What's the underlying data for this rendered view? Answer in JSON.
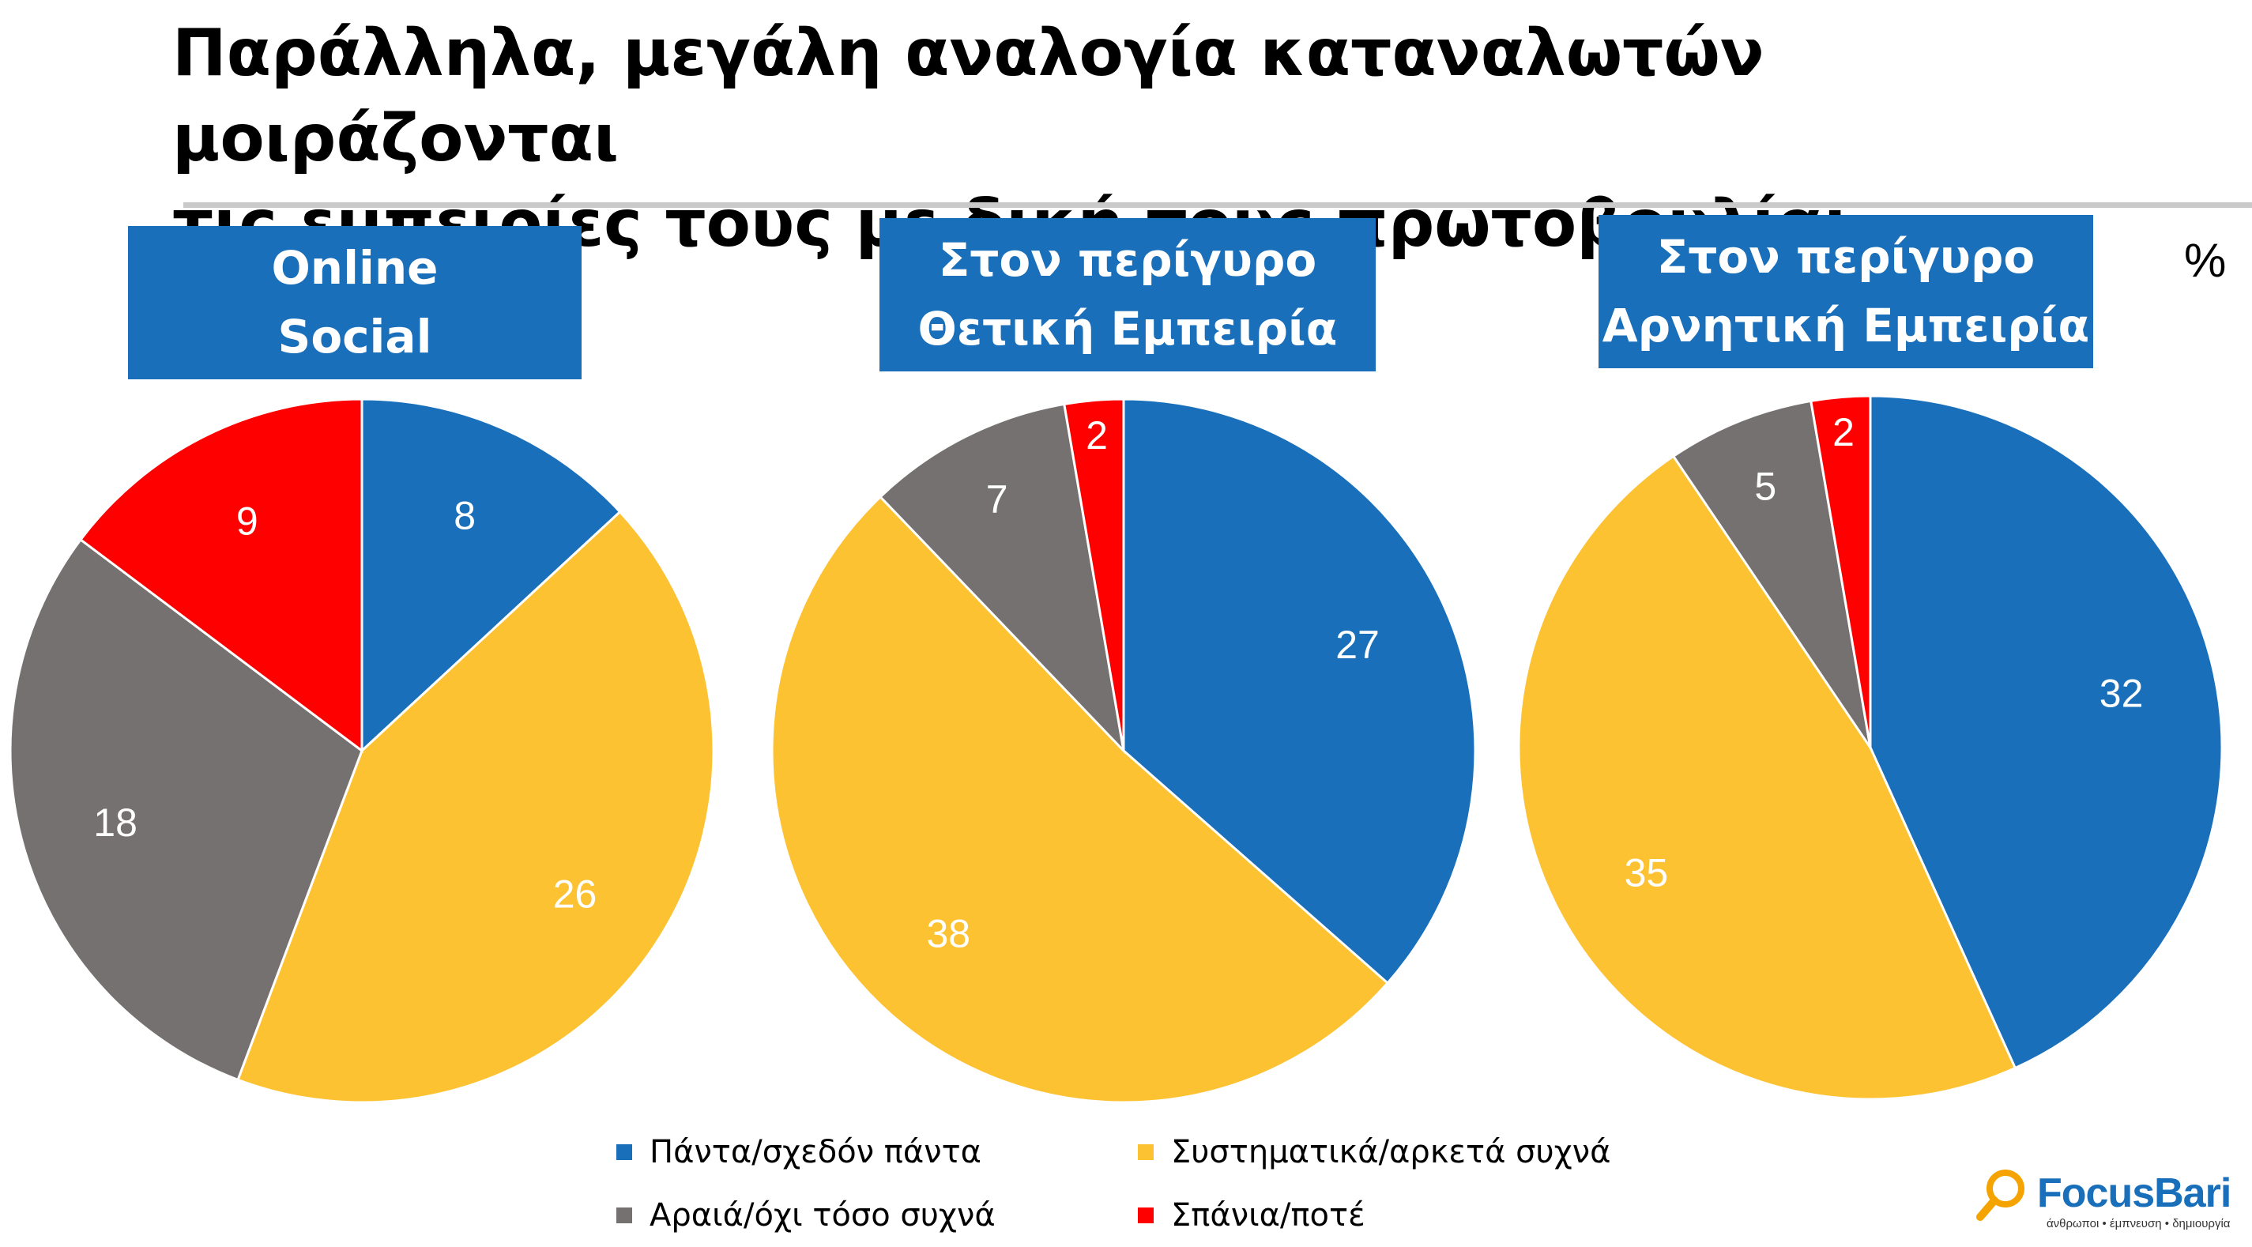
{
  "title": {
    "line1": "Παράλληλα, μεγάλη αναλογία καταναλωτών μοιράζονται",
    "line2": "τις εμπειρίες τους με δική τους πρωτοβουλία:"
  },
  "unit": "%",
  "legend": [
    {
      "label": "Πάντα/σχεδόν πάντα",
      "color": "#1a6fba"
    },
    {
      "label": "Συστηματικά/αρκετά συχνά",
      "color": "#fcc231"
    },
    {
      "label": "Αραιά/όχι τόσο συχνά",
      "color": "#767171"
    },
    {
      "label": "Σπάνια/ποτέ",
      "color": "#ff0000"
    }
  ],
  "logo": {
    "name": "FocusBari",
    "tagline": "άνθρωποι • έμπνευση • δημιουργία"
  },
  "chart_data": [
    {
      "type": "pie",
      "title_lines": [
        "Online",
        "Social"
      ],
      "categories": [
        "Πάντα/σχεδόν πάντα",
        "Συστηματικά/αρκετά συχνά",
        "Αραιά/όχι τόσο συχνά",
        "Σπάνια/ποτέ"
      ],
      "values": [
        8,
        26,
        18,
        9
      ]
    },
    {
      "type": "pie",
      "title_lines": [
        "Στον περίγυρο",
        "Θετική Εμπειρία"
      ],
      "categories": [
        "Πάντα/σχεδόν πάντα",
        "Συστηματικά/αρκετά συχνά",
        "Αραιά/όχι τόσο συχνά",
        "Σπάνια/ποτέ"
      ],
      "values": [
        27,
        38,
        7,
        2
      ]
    },
    {
      "type": "pie",
      "title_lines": [
        "Στον περίγυρο",
        "Αρνητική Εμπειρία"
      ],
      "categories": [
        "Πάντα/σχεδόν πάντα",
        "Συστηματικά/αρκετά συχνά",
        "Αραιά/όχι τόσο συχνά",
        "Σπάνια/ποτέ"
      ],
      "values": [
        32,
        35,
        5,
        2
      ]
    }
  ]
}
